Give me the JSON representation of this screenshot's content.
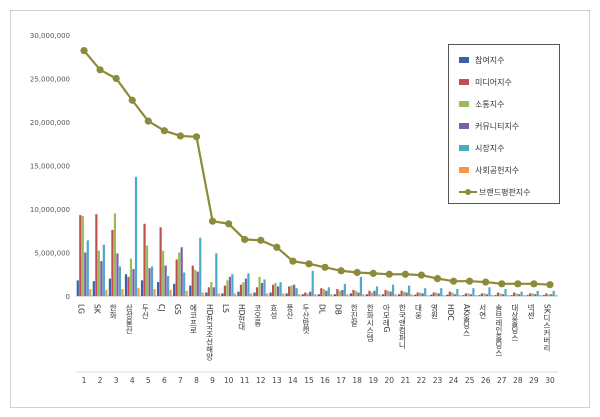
{
  "chart_data": {
    "type": "bar",
    "ylim": [
      0,
      30000000
    ],
    "yticks": [
      "0",
      "5,000,000",
      "10,000,000",
      "15,000,000",
      "20,000,000",
      "25,000,000",
      "30,000,000"
    ],
    "grid": false,
    "legend_position": "top-right",
    "categories": [
      "LG",
      "SK",
      "한화",
      "삼성물산",
      "두산",
      "CJ",
      "GS",
      "에코프로",
      "HD한국조선해양",
      "LS",
      "HD현대",
      "코오롱",
      "효성",
      "풍산",
      "두산밥캣",
      "DL",
      "DB",
      "한진칼",
      "한화시스템",
      "아모레G",
      "한국앤컴퍼니",
      "대웅",
      "영원",
      "HDC",
      "AK홀딩스",
      "서연",
      "솔브레인홀딩스",
      "대상홀딩스",
      "넥센",
      "SK디스커버리"
    ],
    "ranks": [
      "1",
      "2",
      "3",
      "4",
      "5",
      "6",
      "7",
      "8",
      "9",
      "10",
      "11",
      "12",
      "13",
      "14",
      "15",
      "16",
      "17",
      "18",
      "19",
      "20",
      "21",
      "22",
      "23",
      "24",
      "25",
      "26",
      "27",
      "28",
      "29",
      "30"
    ],
    "series": [
      {
        "name": "참여지수",
        "color": "#3f5fa8",
        "values": [
          1800000,
          1700000,
          2000000,
          2500000,
          1800000,
          1600000,
          1400000,
          1200000,
          400000,
          300000,
          500000,
          400000,
          400000,
          300000,
          200000,
          200000,
          200000,
          300000,
          200000,
          200000,
          200000,
          150000,
          150000,
          150000,
          100000,
          100000,
          100000,
          100000,
          100000,
          100000
        ]
      },
      {
        "name": "미디어지수",
        "color": "#c0504d",
        "values": [
          9300000,
          9400000,
          7600000,
          2200000,
          8300000,
          7900000,
          4200000,
          3500000,
          1000000,
          1200000,
          1300000,
          1000000,
          1300000,
          1100000,
          400000,
          900000,
          800000,
          700000,
          600000,
          700000,
          600000,
          400000,
          400000,
          500000,
          300000,
          300000,
          400000,
          400000,
          300000,
          300000
        ]
      },
      {
        "name": "소통지수",
        "color": "#9bbb59",
        "values": [
          9200000,
          5200000,
          9500000,
          4300000,
          5800000,
          5200000,
          5000000,
          3000000,
          1600000,
          1800000,
          1600000,
          2200000,
          1500000,
          1200000,
          300000,
          800000,
          600000,
          600000,
          400000,
          600000,
          500000,
          400000,
          400000,
          400000,
          300000,
          300000,
          300000,
          300000,
          300000,
          200000
        ]
      },
      {
        "name": "커뮤니티지수",
        "color": "#7e5fa6",
        "values": [
          5000000,
          4000000,
          4900000,
          3100000,
          3200000,
          3500000,
          5600000,
          2800000,
          1000000,
          2200000,
          2000000,
          1500000,
          1100000,
          1300000,
          500000,
          600000,
          700000,
          400000,
          600000,
          500000,
          400000,
          300000,
          300000,
          200000,
          200000,
          200000,
          200000,
          200000,
          200000,
          200000
        ]
      },
      {
        "name": "시장지수",
        "color": "#4bacc6",
        "values": [
          6400000,
          5900000,
          3400000,
          13700000,
          3400000,
          2300000,
          2700000,
          6700000,
          4900000,
          2500000,
          2600000,
          1900000,
          1600000,
          900000,
          2900000,
          1000000,
          1400000,
          2200000,
          1100000,
          1300000,
          1200000,
          900000,
          900000,
          800000,
          900000,
          1000000,
          800000,
          500000,
          600000,
          600000
        ]
      },
      {
        "name": "사회공헌지수",
        "color": "#f79646",
        "values": [
          800000,
          700000,
          800000,
          900000,
          800000,
          700000,
          600000,
          400000,
          300000,
          300000,
          300000,
          300000,
          300000,
          200000,
          200000,
          200000,
          200000,
          200000,
          200000,
          200000,
          200000,
          100000,
          100000,
          100000,
          100000,
          100000,
          100000,
          100000,
          100000,
          100000
        ]
      }
    ],
    "line_series": {
      "name": "브랜드평판지수",
      "color": "#8b8b3a",
      "values": [
        28200000,
        26000000,
        25000000,
        22500000,
        20100000,
        19000000,
        18400000,
        18300000,
        8600000,
        8300000,
        6500000,
        6400000,
        5600000,
        4000000,
        3700000,
        3300000,
        2900000,
        2700000,
        2600000,
        2500000,
        2500000,
        2400000,
        2000000,
        1700000,
        1700000,
        1600000,
        1400000,
        1400000,
        1400000,
        1300000
      ]
    }
  }
}
